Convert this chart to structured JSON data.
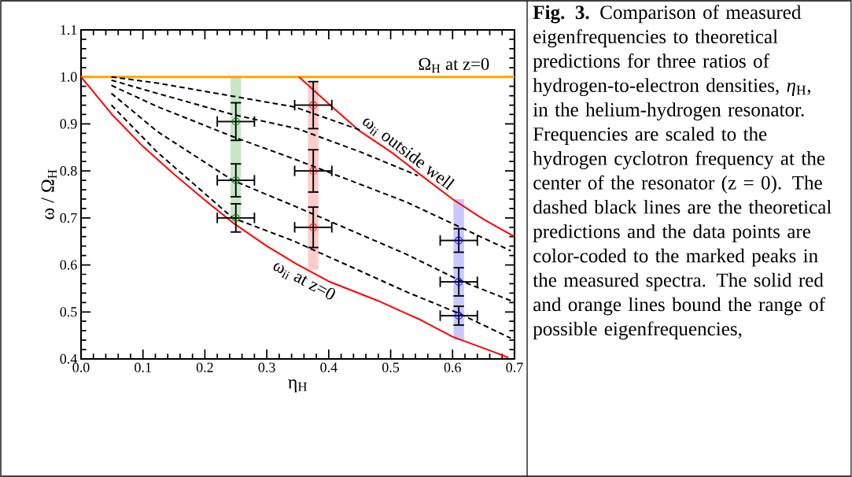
{
  "chart_data": {
    "type": "line",
    "xlabel": "η$_{H}$",
    "ylabel": "ω / Ω$_{H}$",
    "xlim": [
      0,
      0.7
    ],
    "ylim": [
      0.4,
      1.1
    ],
    "xticks": [
      {
        "value": 0,
        "label": "0.0"
      },
      0.1,
      0.2,
      0.3,
      0.4,
      0.5,
      0.6,
      0.7
    ],
    "yticks": [
      0.4,
      0.5,
      0.6,
      0.7,
      0.8,
      0.9,
      {
        "value": 1,
        "label": "1.0"
      },
      1.1
    ],
    "annotations": [
      "**Fig. 3.** Comparison of measured eigenfrequencies to theoretical predictions for three ratios of hydrogen-to-electron densities, *η*$_{H}$, in the helium-hydrogen resonator. Frequencies are scaled to the hydrogen cyclotron frequency at the center of the resonator (z = 0). The dashed black lines are the theoretical predictions and the data points are color-coded to the marked peaks in the measured spectra. The solid red and orange lines bound the range of possible eigenfrequencies,"
    ],
    "series": [
      {
        "type": "bar",
        "x": [
          0.25,
          0.375,
          0.61
        ],
        "base": [
          0.69,
          0.59,
          0.44
        ],
        "values": [
          0.31,
          0.4,
          0.3
        ],
        "colors": [
          "#c8e6c8",
          "#ffcccc",
          "#c8c8ff"
        ]
      },
      {
        "name": "Ω$_{H}$ at z=0",
        "color": "#ffa500",
        "line_style": "solid",
        "x": [
          0,
          0.7
        ],
        "values": [
          1.0,
          1.0
        ]
      },
      {
        "name": "ω$_{ii}$ at z=0",
        "color": "#ff0000",
        "line_style": "solid",
        "x": [
          0,
          0.05,
          0.1,
          0.15,
          0.2,
          0.245,
          0.3,
          0.349,
          0.4,
          0.479,
          0.55,
          0.6,
          0.664,
          0.69
        ],
        "values": [
          1.0,
          0.92,
          0.852,
          0.793,
          0.738,
          0.69,
          0.64,
          0.601,
          0.565,
          0.524,
          0.482,
          0.447,
          0.416,
          0.403
        ]
      },
      {
        "name": "ω$_{ii}$ outside well",
        "color": "#ff0000",
        "line_style": "solid",
        "x": [
          0.352,
          0.404,
          0.45,
          0.502,
          0.55,
          0.6,
          0.65,
          0.7
        ],
        "values": [
          1.0,
          0.938,
          0.885,
          0.839,
          0.79,
          0.74,
          0.697,
          0.66
        ]
      },
      {
        "color": "#000000",
        "line_style": "dashed",
        "x": [
          0.049,
          0.123,
          0.245,
          0.345,
          0.453
        ],
        "values": [
          1.0,
          0.987,
          0.959,
          0.936,
          0.886
        ]
      },
      {
        "color": "#000000",
        "line_style": "dashed",
        "x": [
          0.049,
          0.123,
          0.245,
          0.349,
          0.45,
          0.544
        ],
        "values": [
          0.993,
          0.965,
          0.92,
          0.89,
          0.841,
          0.79
        ]
      },
      {
        "color": "#000000",
        "line_style": "dashed",
        "x": [
          0.049,
          0.123,
          0.245,
          0.345,
          0.525,
          0.694
        ],
        "values": [
          0.982,
          0.937,
          0.873,
          0.825,
          0.734,
          0.63
        ]
      },
      {
        "color": "#000000",
        "line_style": "dashed",
        "x": [
          0.049,
          0.123,
          0.245,
          0.345,
          0.525,
          0.61,
          0.694
        ],
        "values": [
          0.965,
          0.884,
          0.78,
          0.725,
          0.623,
          0.568,
          0.524
        ]
      },
      {
        "color": "#000000",
        "line_style": "dashed",
        "x": [
          0.049,
          0.123,
          0.245,
          0.345,
          0.525,
          0.61,
          0.694
        ],
        "values": [
          0.94,
          0.84,
          0.7,
          0.65,
          0.543,
          0.497,
          0.444
        ]
      },
      {
        "type": "scatter",
        "marker": "circle",
        "color": "#008000",
        "x": [
          0.25,
          0.25,
          0.25
        ],
        "values": [
          0.905,
          0.78,
          0.7
        ],
        "errors": [
          0.04,
          0.035,
          0.03
        ],
        "xerrors": [
          0.03,
          0.03,
          0.03
        ]
      },
      {
        "type": "scatter",
        "marker": "circle",
        "color": "#ff0000",
        "x": [
          0.375,
          0.375,
          0.375
        ],
        "values": [
          0.94,
          0.8,
          0.68
        ],
        "errors": [
          0.05,
          0.045,
          0.043
        ],
        "xerrors": [
          0.03,
          0.03,
          0.03
        ]
      },
      {
        "type": "scatter",
        "marker": "circle",
        "color": "#0000ff",
        "x": [
          0.61,
          0.61,
          0.61
        ],
        "values": [
          0.652,
          0.564,
          0.492
        ],
        "errors": [
          0.025,
          0.03,
          0.02
        ],
        "xerrors": [
          0.03,
          0.03,
          0.03
        ]
      }
    ]
  }
}
